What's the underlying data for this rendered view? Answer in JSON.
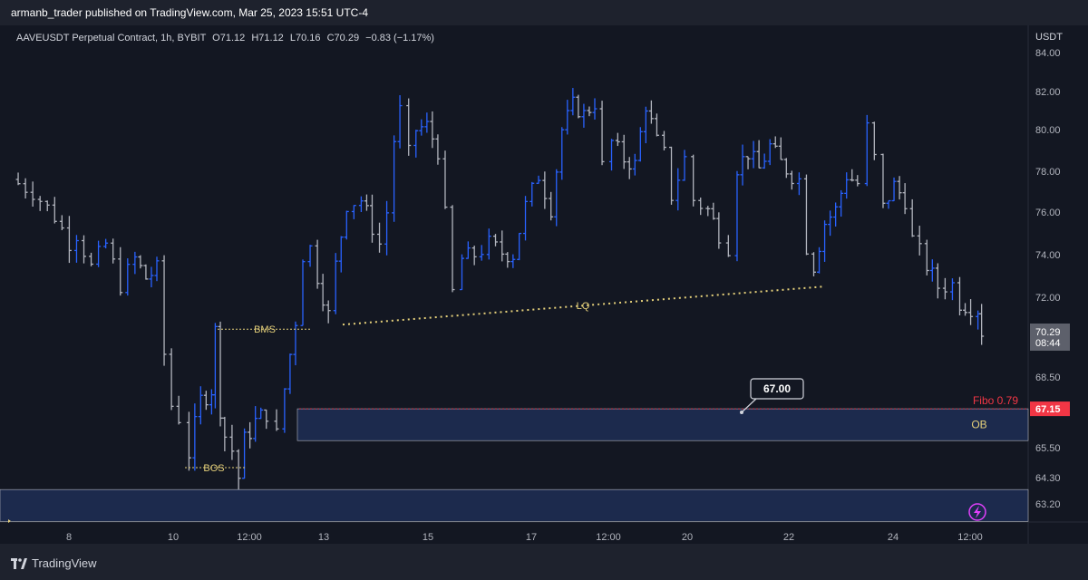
{
  "header": {
    "published": "armanb_trader published on TradingView.com, Mar 25, 2023 15:51 UTC-4"
  },
  "symbol": {
    "name": "AAVEUSDT Perpetual Contract, 1h, BYBIT",
    "open": "O71.12",
    "high": "H71.12",
    "low": "L70.16",
    "close": "C70.29",
    "change": "−0.83 (−1.17%)"
  },
  "axis": {
    "currency": "USDT",
    "current_price": "70.29",
    "countdown": "08:44",
    "fibo_price": "67.15"
  },
  "annotations": {
    "bms": "BMS",
    "bos": "BOS",
    "lq": "LQ",
    "ob": "OB",
    "fibo": "Fibo 0.79",
    "callout": "67.00"
  },
  "footer": {
    "logo_text": "TradingView"
  },
  "colors": {
    "background": "#131722",
    "bar_up": "#2962ff",
    "bar_down": "#b2b5be",
    "annotation": "#e5d07a",
    "fibo": "#f23645",
    "zone_fill": "#1c2a4d"
  },
  "chart_data": {
    "type": "ohlc",
    "ylabel": "USDT",
    "yticks": [
      84.0,
      82.0,
      80.0,
      78.0,
      76.0,
      74.0,
      72.0,
      68.5,
      65.5,
      64.3,
      63.2
    ],
    "xticks": [
      "8",
      "10",
      "12:00",
      "13",
      "15",
      "17",
      "12:00",
      "20",
      "22",
      "24",
      "12:00"
    ],
    "last_price": 70.29,
    "close_path": [
      [
        0,
        77.6
      ],
      [
        3,
        77.0
      ],
      [
        6,
        75.8
      ],
      [
        8,
        74.6
      ],
      [
        9,
        75.0
      ],
      [
        11,
        73.4
      ],
      [
        13,
        74.5
      ],
      [
        15,
        72.6
      ],
      [
        17,
        73.8
      ],
      [
        18.5,
        72.9
      ],
      [
        20,
        73.3
      ],
      [
        21,
        69.5
      ],
      [
        22,
        67.3
      ],
      [
        23,
        66.8
      ],
      [
        24.4,
        65.3
      ],
      [
        26,
        67.5
      ],
      [
        27.5,
        68.0
      ],
      [
        28,
        70.5
      ],
      [
        28.7,
        67.2
      ],
      [
        29.3,
        66.0
      ],
      [
        30.3,
        65.4
      ],
      [
        31.2,
        64.3
      ],
      [
        32,
        65.8
      ],
      [
        33.5,
        66.6
      ],
      [
        35,
        67.0
      ],
      [
        36.4,
        66.0
      ],
      [
        37.5,
        68.0
      ],
      [
        39,
        71.0
      ],
      [
        40,
        74.0
      ],
      [
        41,
        74.3
      ],
      [
        42,
        73.0
      ],
      [
        43.5,
        71.2
      ],
      [
        44.5,
        73.5
      ],
      [
        46,
        76.4
      ],
      [
        48,
        76.6
      ],
      [
        49.5,
        75.3
      ],
      [
        50.5,
        74.5
      ],
      [
        51.5,
        76.0
      ],
      [
        52.5,
        79.5
      ],
      [
        53.3,
        81.0
      ],
      [
        54.5,
        78.8
      ],
      [
        55.5,
        80.0
      ],
      [
        57,
        80.2
      ],
      [
        58.5,
        79.0
      ],
      [
        59.5,
        75.8
      ],
      [
        60.5,
        72.2
      ],
      [
        61.8,
        73.8
      ],
      [
        63.5,
        74.0
      ],
      [
        65.5,
        74.5
      ],
      [
        67.3,
        74.1
      ],
      [
        68.8,
        74.0
      ],
      [
        70.5,
        76.3
      ],
      [
        72.3,
        77.8
      ],
      [
        74,
        76.2
      ],
      [
        75.5,
        80.0
      ],
      [
        77,
        81.3
      ],
      [
        78.5,
        80.8
      ],
      [
        80,
        81.4
      ],
      [
        81,
        78.2
      ],
      [
        82.3,
        79.4
      ],
      [
        84,
        78.6
      ],
      [
        85.5,
        78.3
      ],
      [
        87,
        81.3
      ],
      [
        88.5,
        79.4
      ],
      [
        89.5,
        78.8
      ],
      [
        90.5,
        76.8
      ],
      [
        92.3,
        78.6
      ],
      [
        93.5,
        76.6
      ],
      [
        95.5,
        76.1
      ],
      [
        97,
        75.0
      ],
      [
        98.3,
        74.4
      ],
      [
        99.5,
        78.2
      ],
      [
        101,
        78.9
      ],
      [
        102.5,
        78.1
      ],
      [
        104,
        79.2
      ],
      [
        105.5,
        78.4
      ],
      [
        107,
        77.8
      ],
      [
        108,
        77.6
      ],
      [
        109,
        74.4
      ],
      [
        110,
        73.5
      ],
      [
        111.5,
        75.5
      ],
      [
        113,
        76.1
      ],
      [
        114.5,
        77.8
      ],
      [
        116,
        77.4
      ],
      [
        117.3,
        80.1
      ],
      [
        118.3,
        78.6
      ],
      [
        119.5,
        76.2
      ],
      [
        121,
        77.3
      ],
      [
        122.5,
        76.6
      ],
      [
        123.5,
        74.7
      ],
      [
        125.5,
        73.5
      ],
      [
        127,
        72.5
      ],
      [
        129,
        72.6
      ],
      [
        130,
        71.8
      ],
      [
        131.5,
        71.6
      ],
      [
        132.5,
        71.5
      ],
      [
        133,
        70.29
      ]
    ],
    "zones": [
      {
        "label": "OB",
        "from": 65.8,
        "to": 67.15
      },
      {
        "label": "lower zone",
        "from": 62.4,
        "to": 63.8
      }
    ],
    "levels": {
      "fibo_0_79": 67.15,
      "bms": 70.6,
      "bos": 64.7,
      "lq_start": 70.8,
      "lq_end": 72.5
    }
  }
}
